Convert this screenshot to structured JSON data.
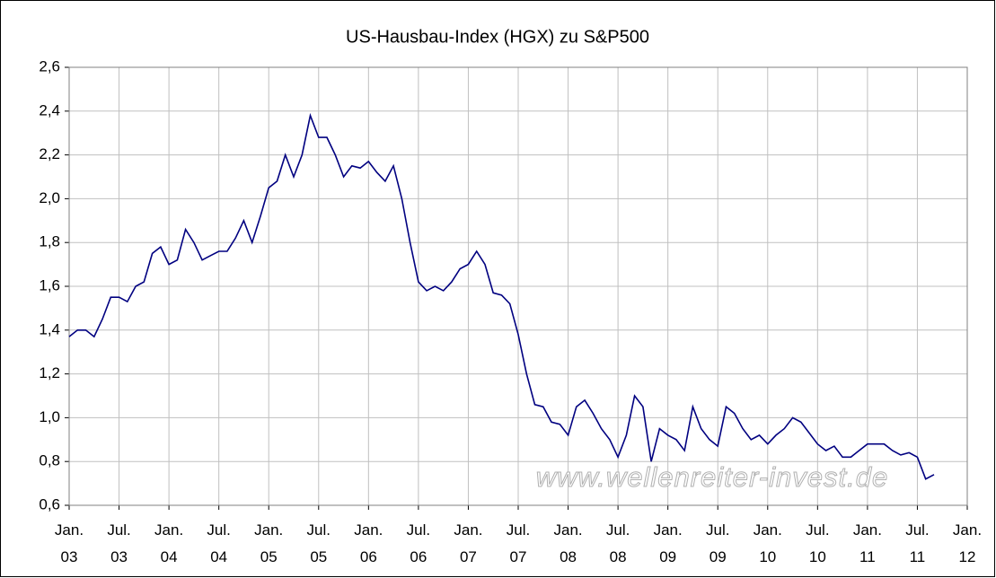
{
  "chart_data": {
    "type": "line",
    "title": "US-Hausbau-Index (HGX) zu S&P500",
    "annotation": "www.wellenreiter-invest.de",
    "grid": true,
    "x": [
      "2003-01",
      "2003-02",
      "2003-03",
      "2003-04",
      "2003-05",
      "2003-06",
      "2003-07",
      "2003-08",
      "2003-09",
      "2003-10",
      "2003-11",
      "2003-12",
      "2004-01",
      "2004-02",
      "2004-03",
      "2004-04",
      "2004-05",
      "2004-06",
      "2004-07",
      "2004-08",
      "2004-09",
      "2004-10",
      "2004-11",
      "2004-12",
      "2005-01",
      "2005-02",
      "2005-03",
      "2005-04",
      "2005-05",
      "2005-06",
      "2005-07",
      "2005-08",
      "2005-09",
      "2005-10",
      "2005-11",
      "2005-12",
      "2006-01",
      "2006-02",
      "2006-03",
      "2006-04",
      "2006-05",
      "2006-06",
      "2006-07",
      "2006-08",
      "2006-09",
      "2006-10",
      "2006-11",
      "2006-12",
      "2007-01",
      "2007-02",
      "2007-03",
      "2007-04",
      "2007-05",
      "2007-06",
      "2007-07",
      "2007-08",
      "2007-09",
      "2007-10",
      "2007-11",
      "2007-12",
      "2008-01",
      "2008-02",
      "2008-03",
      "2008-04",
      "2008-05",
      "2008-06",
      "2008-07",
      "2008-08",
      "2008-09",
      "2008-10",
      "2008-11",
      "2008-12",
      "2009-01",
      "2009-02",
      "2009-03",
      "2009-04",
      "2009-05",
      "2009-06",
      "2009-07",
      "2009-08",
      "2009-09",
      "2009-10",
      "2009-11",
      "2009-12",
      "2010-01",
      "2010-02",
      "2010-03",
      "2010-04",
      "2010-05",
      "2010-06",
      "2010-07",
      "2010-08",
      "2010-09",
      "2010-10",
      "2010-11",
      "2010-12",
      "2011-01",
      "2011-02",
      "2011-03",
      "2011-04",
      "2011-05",
      "2011-06",
      "2011-07",
      "2011-08",
      "2011-09"
    ],
    "series": [
      {
        "color": "#000080",
        "values": [
          1.37,
          1.4,
          1.4,
          1.37,
          1.45,
          1.55,
          1.55,
          1.53,
          1.6,
          1.62,
          1.75,
          1.78,
          1.7,
          1.72,
          1.86,
          1.8,
          1.72,
          1.74,
          1.76,
          1.76,
          1.82,
          1.9,
          1.8,
          1.92,
          2.05,
          2.08,
          2.2,
          2.1,
          2.2,
          2.38,
          2.28,
          2.28,
          2.2,
          2.1,
          2.15,
          2.14,
          2.17,
          2.12,
          2.08,
          2.15,
          2.0,
          1.8,
          1.62,
          1.58,
          1.6,
          1.58,
          1.62,
          1.68,
          1.7,
          1.76,
          1.7,
          1.57,
          1.56,
          1.52,
          1.38,
          1.2,
          1.06,
          1.05,
          0.98,
          0.97,
          0.92,
          1.05,
          1.08,
          1.02,
          0.95,
          0.9,
          0.82,
          0.92,
          1.1,
          1.05,
          0.8,
          0.95,
          0.92,
          0.9,
          0.85,
          1.05,
          0.95,
          0.9,
          0.87,
          1.05,
          1.02,
          0.95,
          0.9,
          0.92,
          0.88,
          0.92,
          0.95,
          1.0,
          0.98,
          0.93,
          0.88,
          0.85,
          0.87,
          0.82,
          0.82,
          0.85,
          0.88,
          0.88,
          0.88,
          0.85,
          0.83,
          0.84,
          0.82,
          0.72,
          0.74
        ]
      }
    ],
    "xlim": [
      "2003-01",
      "2012-01"
    ],
    "xticks": [
      {
        "value": "2003-01",
        "label": "Jan.\n03"
      },
      {
        "value": "2003-07",
        "label": "Jul.\n03"
      },
      {
        "value": "2004-01",
        "label": "Jan.\n04"
      },
      {
        "value": "2004-07",
        "label": "Jul.\n04"
      },
      {
        "value": "2005-01",
        "label": "Jan.\n05"
      },
      {
        "value": "2005-07",
        "label": "Jul.\n05"
      },
      {
        "value": "2006-01",
        "label": "Jan.\n06"
      },
      {
        "value": "2006-07",
        "label": "Jul.\n06"
      },
      {
        "value": "2007-01",
        "label": "Jan.\n07"
      },
      {
        "value": "2007-07",
        "label": "Jul.\n07"
      },
      {
        "value": "2008-01",
        "label": "Jan.\n08"
      },
      {
        "value": "2008-07",
        "label": "Jul.\n08"
      },
      {
        "value": "2009-01",
        "label": "Jan.\n09"
      },
      {
        "value": "2009-07",
        "label": "Jul.\n09"
      },
      {
        "value": "2010-01",
        "label": "Jan.\n10"
      },
      {
        "value": "2010-07",
        "label": "Jul.\n10"
      },
      {
        "value": "2011-01",
        "label": "Jan.\n11"
      },
      {
        "value": "2011-07",
        "label": "Jul.\n11"
      },
      {
        "value": "2012-01",
        "label": "Jan.\n12"
      }
    ],
    "ylim": [
      0.6,
      2.6
    ],
    "yticks": [
      {
        "value": 0.6,
        "label": "0,6"
      },
      {
        "value": 0.8,
        "label": "0,8"
      },
      {
        "value": 1.0,
        "label": "1,0"
      },
      {
        "value": 1.2,
        "label": "1,2"
      },
      {
        "value": 1.4,
        "label": "1,4"
      },
      {
        "value": 1.6,
        "label": "1,6"
      },
      {
        "value": 1.8,
        "label": "1,8"
      },
      {
        "value": 2.0,
        "label": "2,0"
      },
      {
        "value": 2.2,
        "label": "2,2"
      },
      {
        "value": 2.4,
        "label": "2,4"
      },
      {
        "value": 2.6,
        "label": "2,6"
      }
    ]
  }
}
